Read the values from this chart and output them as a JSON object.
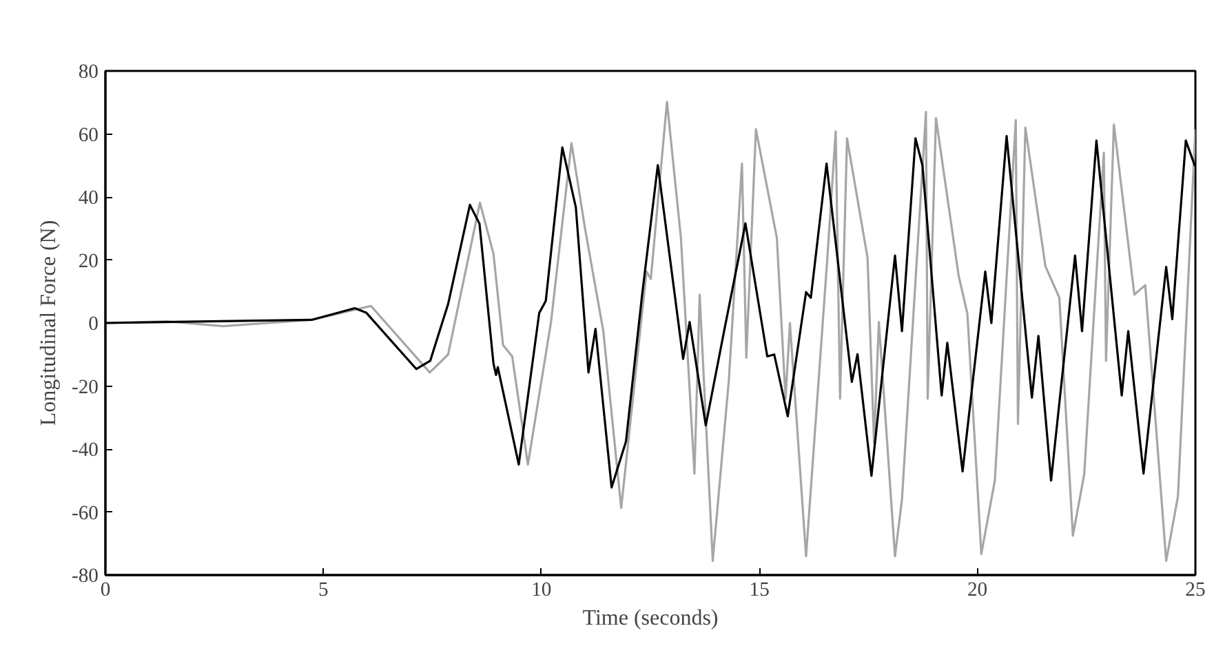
{
  "chart_data": {
    "type": "line",
    "xlabel": "Time (seconds)",
    "ylabel": "Longitudinal Force (N)",
    "xlim": [
      0,
      25
    ],
    "ylim": [
      -80,
      80
    ],
    "xticks": [
      0,
      5,
      10,
      15,
      20,
      25
    ],
    "yticks": [
      -80,
      -60,
      -40,
      -20,
      0,
      20,
      40,
      60,
      80
    ],
    "grid": false,
    "series": [
      {
        "color": "#a6a6a6",
        "x": [
          0,
          1.4,
          2.7,
          4.73,
          6.09,
          7.44,
          7.86,
          8.59,
          8.9,
          9.12,
          9.33,
          9.69,
          10.22,
          10.69,
          11.0,
          11.42,
          11.83,
          12.41,
          12.51,
          12.88,
          13.2,
          13.51,
          13.63,
          13.93,
          14.3,
          14.6,
          14.7,
          14.92,
          15.4,
          15.6,
          15.7,
          16.07,
          16.55,
          16.75,
          16.85,
          17.01,
          17.48,
          17.63,
          17.74,
          18.11,
          18.27,
          18.82,
          18.86,
          19.05,
          19.57,
          19.77,
          20.09,
          20.4,
          20.88,
          20.93,
          21.1,
          21.56,
          21.88,
          22.19,
          22.45,
          22.9,
          22.95,
          23.13,
          23.6,
          23.85,
          24.33,
          24.6,
          25.0
        ],
        "values": [
          0,
          0.5,
          -1,
          1,
          5.4,
          -15.7,
          -10,
          38.2,
          22,
          -7,
          -10.6,
          -44.9,
          0.3,
          57.1,
          30,
          -2.6,
          -58.7,
          16.3,
          14,
          70.2,
          27,
          -47.8,
          9,
          -75.5,
          -18,
          50.6,
          -11,
          61.5,
          27,
          -24,
          0,
          -74,
          19,
          60.8,
          -24,
          58.6,
          20.7,
          -38,
          0.3,
          -74,
          -56,
          67,
          -24,
          65,
          15,
          3,
          -73.3,
          -50,
          64.4,
          -32,
          62,
          18,
          8,
          -67.5,
          -48,
          54,
          -12,
          63,
          9,
          12,
          -75.5,
          -55,
          61.5
        ]
      },
      {
        "color": "#000000",
        "x": [
          0,
          4.73,
          5.72,
          5.98,
          7.13,
          7.45,
          7.86,
          8.36,
          8.58,
          8.9,
          8.96,
          9.0,
          9.48,
          9.95,
          10.1,
          10.48,
          10.79,
          11.08,
          11.24,
          11.61,
          11.94,
          12.31,
          12.67,
          13.25,
          13.4,
          13.77,
          14.19,
          14.68,
          15.18,
          15.34,
          15.65,
          16.07,
          16.18,
          16.54,
          17.12,
          17.25,
          17.57,
          18.11,
          18.27,
          18.58,
          18.74,
          19.18,
          19.31,
          19.66,
          20.18,
          20.32,
          20.67,
          21.25,
          21.4,
          21.69,
          22.24,
          22.4,
          22.73,
          23.31,
          23.46,
          23.81,
          24.33,
          24.47,
          24.78,
          24.99
        ],
        "values": [
          0,
          1,
          4.7,
          3.3,
          -14.6,
          -12,
          6,
          37.5,
          31.5,
          -12.8,
          -16.5,
          -14,
          -44.9,
          3.2,
          7,
          55.7,
          36.7,
          -15.7,
          -1.9,
          -52.2,
          -37.6,
          9,
          50.1,
          -11.4,
          0.3,
          -32.5,
          -2.6,
          31.6,
          -10.6,
          -10,
          -29.6,
          9.8,
          8,
          50.6,
          -18.7,
          -9.9,
          -48.5,
          21.4,
          -2.6,
          58.6,
          50,
          -23,
          -6.3,
          -47.1,
          16.3,
          0,
          59.3,
          -23.7,
          -4.1,
          -50,
          21.4,
          -2.6,
          57.9,
          -23,
          -2.6,
          -47.8,
          17.8,
          1.2,
          57.9,
          49.8
        ]
      }
    ]
  }
}
